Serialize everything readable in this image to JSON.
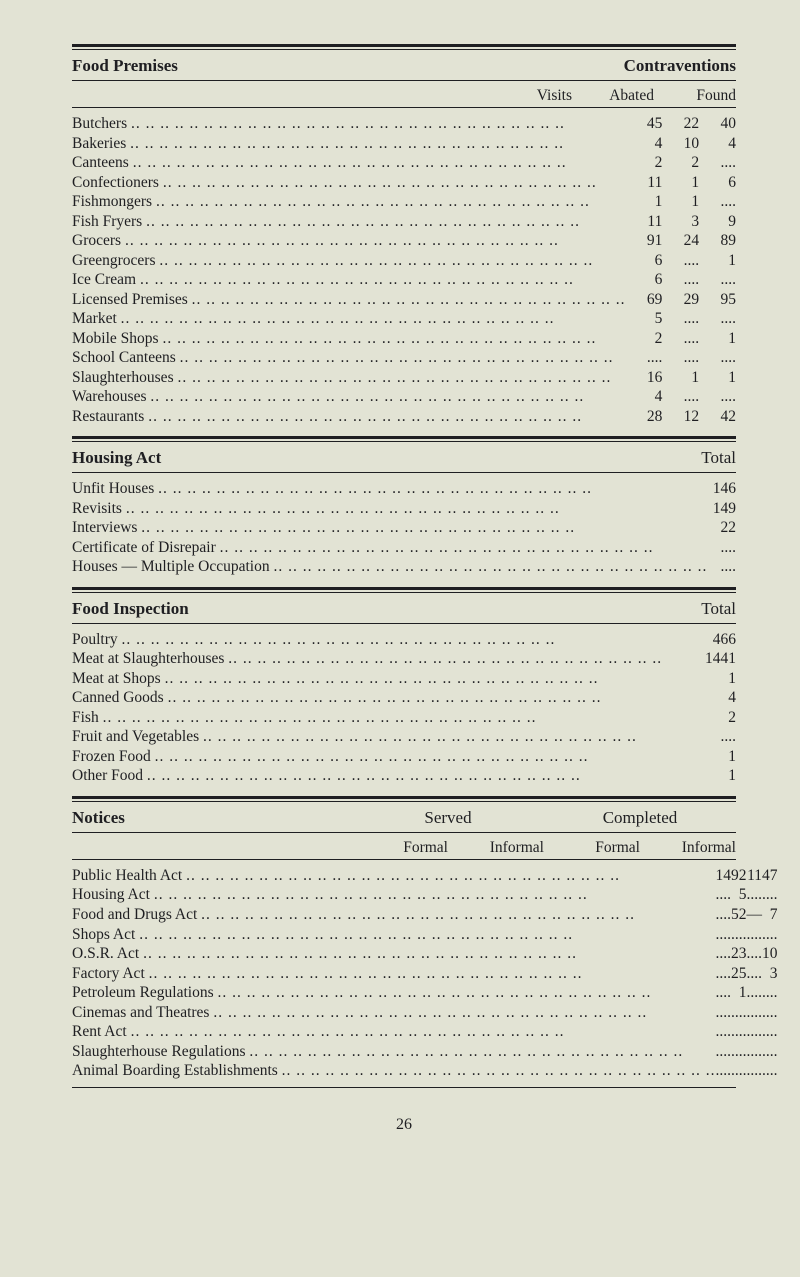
{
  "page_number": "26",
  "colors": {
    "bg": "#e2e3d4",
    "text": "#1f1f22",
    "rule": "#1f1f22"
  },
  "font": {
    "family": "Times New Roman",
    "body_pt": 15.5,
    "head_pt": 17
  },
  "food_premises": {
    "title_left": "Food Premises",
    "title_right": "Contraventions",
    "columns": [
      "Visits",
      "Abated",
      "Found"
    ],
    "rows": [
      {
        "label": "Butchers",
        "visits": "45",
        "abated": "22",
        "found": "40"
      },
      {
        "label": "Bakeries",
        "visits": "4",
        "abated": "10",
        "found": "4"
      },
      {
        "label": "Canteens",
        "visits": "2",
        "abated": "2",
        "found": "...."
      },
      {
        "label": "Confectioners",
        "visits": "11",
        "abated": "1",
        "found": "6"
      },
      {
        "label": "Fishmongers",
        "visits": "1",
        "abated": "1",
        "found": "...."
      },
      {
        "label": "Fish Fryers",
        "visits": "11",
        "abated": "3",
        "found": "9"
      },
      {
        "label": "Grocers",
        "visits": "91",
        "abated": "24",
        "found": "89"
      },
      {
        "label": "Greengrocers",
        "visits": "6",
        "abated": "....",
        "found": "1"
      },
      {
        "label": "Ice Cream",
        "visits": "6",
        "abated": "....",
        "found": "...."
      },
      {
        "label": "Licensed Premises",
        "visits": "69",
        "abated": "29",
        "found": "95"
      },
      {
        "label": "Market",
        "visits": "5",
        "abated": "....",
        "found": "...."
      },
      {
        "label": "Mobile Shops",
        "visits": "2",
        "abated": "....",
        "found": "1"
      },
      {
        "label": "School Canteens",
        "visits": "....",
        "abated": "....",
        "found": "...."
      },
      {
        "label": "Slaughterhouses",
        "visits": "16",
        "abated": "1",
        "found": "1"
      },
      {
        "label": "Warehouses",
        "visits": "4",
        "abated": "....",
        "found": "...."
      },
      {
        "label": "Restaurants",
        "visits": "28",
        "abated": "12",
        "found": "42"
      }
    ]
  },
  "housing_act": {
    "title_left": "Housing Act",
    "title_right": "Total",
    "rows": [
      {
        "label": "Unfit Houses",
        "total": "146"
      },
      {
        "label": "Revisits",
        "total": "149"
      },
      {
        "label": "Interviews",
        "total": "22"
      },
      {
        "label": "Certificate of Disrepair",
        "total": "...."
      },
      {
        "label": "Houses — Multiple Occupation",
        "total": "...."
      }
    ]
  },
  "food_inspection": {
    "title_left": "Food Inspection",
    "title_right": "Total",
    "rows": [
      {
        "label": "Poultry",
        "total": "466"
      },
      {
        "label": "Meat at Slaughterhouses",
        "total": "1441"
      },
      {
        "label": "Meat at Shops",
        "total": "1"
      },
      {
        "label": "Canned Goods",
        "total": "4"
      },
      {
        "label": "Fish",
        "total": "2"
      },
      {
        "label": "Fruit and Vegetables",
        "total": "...."
      },
      {
        "label": "Frozen Food",
        "total": "1"
      },
      {
        "label": "Other Food",
        "total": "1"
      }
    ]
  },
  "notices": {
    "title_left": "Notices",
    "group_served": "Served",
    "group_completed": "Completed",
    "columns": [
      "Formal",
      "Informal",
      "Formal",
      "Informal"
    ],
    "rows": [
      {
        "label": "Public Health Act",
        "c1": "14",
        "c2": "92",
        "c3": "11",
        "c4": "47"
      },
      {
        "label": "Housing Act",
        "c1": "....",
        "c2": "5",
        "c3": "....",
        "c4": "...."
      },
      {
        "label": "Food and Drugs Act",
        "c1": "....",
        "c2": "52",
        "c3": "—",
        "c4": "7"
      },
      {
        "label": "Shops Act",
        "c1": "....",
        "c2": "....",
        "c3": "....",
        "c4": "...."
      },
      {
        "label": "O.S.R. Act",
        "c1": "....",
        "c2": "23",
        "c3": "....",
        "c4": "10"
      },
      {
        "label": "Factory Act",
        "c1": "....",
        "c2": "25",
        "c3": "....",
        "c4": "3"
      },
      {
        "label": "Petroleum Regulations",
        "c1": "....",
        "c2": "1",
        "c3": "....",
        "c4": "...."
      },
      {
        "label": "Cinemas and Theatres",
        "c1": "....",
        "c2": "....",
        "c3": "....",
        "c4": "...."
      },
      {
        "label": "Rent Act",
        "c1": "....",
        "c2": "....",
        "c3": "....",
        "c4": "...."
      },
      {
        "label": "Slaughterhouse Regulations",
        "c1": "....",
        "c2": "....",
        "c3": "....",
        "c4": "...."
      },
      {
        "label": "Animal Boarding Establishments",
        "c1": "....",
        "c2": "....",
        "c3": "....",
        "c4": "...."
      }
    ]
  }
}
